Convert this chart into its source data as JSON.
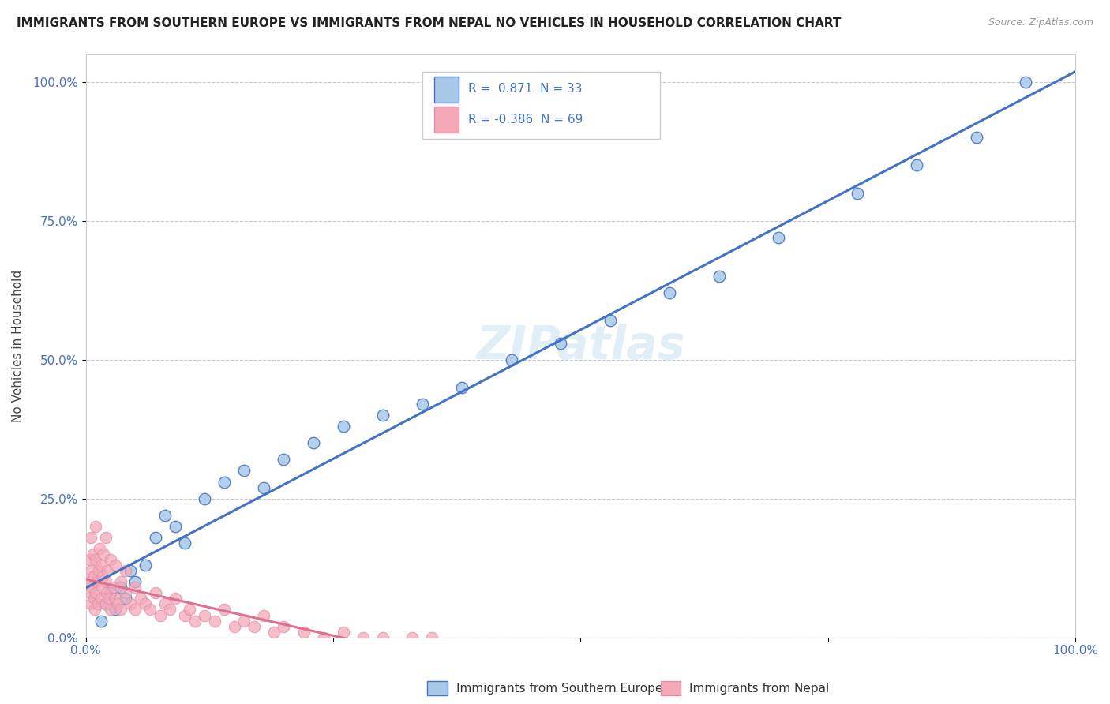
{
  "title": "IMMIGRANTS FROM SOUTHERN EUROPE VS IMMIGRANTS FROM NEPAL NO VEHICLES IN HOUSEHOLD CORRELATION CHART",
  "source": "Source: ZipAtlas.com",
  "ylabel": "No Vehicles in Household",
  "legend_label1": "Immigrants from Southern Europe",
  "legend_label2": "Immigrants from Nepal",
  "R1": 0.871,
  "N1": 33,
  "R2": -0.386,
  "N2": 69,
  "color_blue": "#a8c8e8",
  "color_pink": "#f4a8b8",
  "color_blue_line": "#4472c4",
  "color_pink_line": "#e07090",
  "color_pink_edge": "#e090a8",
  "watermark_text": "ZIPatlas",
  "background_color": "#ffffff",
  "grid_color": "#c8c8c8",
  "y_tick_positions": [
    0,
    25,
    50,
    75,
    100
  ],
  "xlim": [
    0,
    100
  ],
  "ylim": [
    0,
    105
  ],
  "blue_x": [
    1.5,
    2.0,
    2.5,
    3.0,
    3.5,
    4.0,
    4.5,
    5.0,
    6.0,
    7.0,
    8.0,
    9.0,
    10.0,
    12.0,
    14.0,
    16.0,
    18.0,
    20.0,
    23.0,
    26.0,
    30.0,
    34.0,
    38.0,
    43.0,
    48.0,
    53.0,
    59.0,
    64.0,
    70.0,
    78.0,
    84.0,
    90.0,
    95.0
  ],
  "blue_y": [
    3.0,
    6.0,
    8.0,
    5.0,
    9.0,
    7.0,
    12.0,
    10.0,
    13.0,
    18.0,
    22.0,
    20.0,
    17.0,
    25.0,
    28.0,
    30.0,
    27.0,
    32.0,
    35.0,
    38.0,
    40.0,
    42.0,
    45.0,
    50.0,
    53.0,
    57.0,
    62.0,
    65.0,
    72.0,
    80.0,
    85.0,
    90.0,
    100.0
  ],
  "pink_x": [
    0.3,
    0.4,
    0.4,
    0.5,
    0.5,
    0.5,
    0.6,
    0.7,
    0.8,
    0.8,
    0.9,
    1.0,
    1.0,
    1.0,
    1.1,
    1.2,
    1.3,
    1.4,
    1.5,
    1.5,
    1.6,
    1.7,
    1.8,
    2.0,
    2.0,
    2.0,
    2.1,
    2.2,
    2.3,
    2.5,
    2.5,
    2.8,
    3.0,
    3.0,
    3.2,
    3.5,
    3.5,
    4.0,
    4.0,
    4.5,
    5.0,
    5.0,
    5.5,
    6.0,
    6.5,
    7.0,
    7.5,
    8.0,
    8.5,
    9.0,
    10.0,
    10.5,
    11.0,
    12.0,
    13.0,
    14.0,
    15.0,
    16.0,
    17.0,
    18.0,
    19.0,
    20.0,
    22.0,
    24.0,
    26.0,
    28.0,
    30.0,
    33.0,
    35.0
  ],
  "pink_y": [
    10.0,
    8.0,
    14.0,
    6.0,
    12.0,
    18.0,
    9.0,
    15.0,
    7.0,
    11.0,
    5.0,
    8.0,
    14.0,
    20.0,
    10.0,
    6.0,
    12.0,
    16.0,
    7.0,
    13.0,
    9.0,
    11.0,
    15.0,
    6.0,
    10.0,
    18.0,
    8.0,
    12.0,
    7.0,
    5.0,
    14.0,
    9.0,
    7.0,
    13.0,
    6.0,
    5.0,
    10.0,
    8.0,
    12.0,
    6.0,
    5.0,
    9.0,
    7.0,
    6.0,
    5.0,
    8.0,
    4.0,
    6.0,
    5.0,
    7.0,
    4.0,
    5.0,
    3.0,
    4.0,
    3.0,
    5.0,
    2.0,
    3.0,
    2.0,
    4.0,
    1.0,
    2.0,
    1.0,
    0.0,
    1.0,
    0.0,
    0.0,
    0.0,
    0.0
  ]
}
